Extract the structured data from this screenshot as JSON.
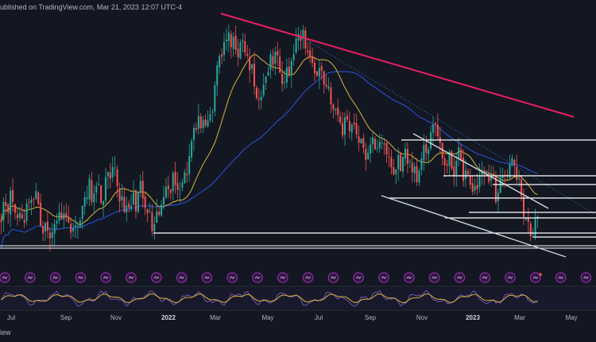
{
  "header": {
    "text": "ublished on TradingView.com, Mar 21, 2023 12:07 UTC-4"
  },
  "footer": {
    "label": "iew"
  },
  "colors": {
    "background": "#131722",
    "candle_up": "#26a69a",
    "candle_down": "#ef5350",
    "sma_fast": "#c7a83a",
    "sma_slow": "#2a4fd1",
    "downtrend": "#e91e63",
    "levels": "#ffffff",
    "channel": "#cfd8dc",
    "rsi": "#c7a83a",
    "rsi_signal": "#7e57c2",
    "event_icon": "#9c27b0"
  },
  "chart_data": {
    "type": "candlestick",
    "x_tick_labels": [
      {
        "label": "Jul",
        "bold": false
      },
      {
        "label": "Sep",
        "bold": false
      },
      {
        "label": "Nov",
        "bold": false
      },
      {
        "label": "2022",
        "bold": true
      },
      {
        "label": "Mar",
        "bold": false
      },
      {
        "label": "May",
        "bold": false
      },
      {
        "label": "Jul",
        "bold": false
      },
      {
        "label": "Sep",
        "bold": false
      },
      {
        "label": "Nov",
        "bold": false
      },
      {
        "label": "2023",
        "bold": true
      },
      {
        "label": "Mar",
        "bold": false
      },
      {
        "label": "May",
        "bold": false
      }
    ],
    "price_path": [
      {
        "period": "Jun 2021",
        "close": 0.53
      },
      {
        "period": "Jul 2021",
        "close": 0.55
      },
      {
        "period": "Aug 2021",
        "close": 0.5
      },
      {
        "period": "Sep 2021",
        "close": 0.52
      },
      {
        "period": "Oct 2021",
        "close": 0.6
      },
      {
        "period": "Nov 2021",
        "close": 0.56
      },
      {
        "period": "Dec 2021",
        "close": 0.52
      },
      {
        "period": "Jan 2022",
        "close": 0.62
      },
      {
        "period": "Feb 2022",
        "close": 0.75
      },
      {
        "period": "Mar 2022",
        "close": 0.95
      },
      {
        "period": "Apr 2022",
        "close": 0.83
      },
      {
        "period": "May 2022",
        "close": 0.88
      },
      {
        "period": "Jun 2022",
        "close": 0.92
      },
      {
        "period": "Jul 2022",
        "close": 0.78
      },
      {
        "period": "Aug 2022",
        "close": 0.7
      },
      {
        "period": "Sep 2022",
        "close": 0.67
      },
      {
        "period": "Oct 2022",
        "close": 0.63
      },
      {
        "period": "Nov 2022",
        "close": 0.7
      },
      {
        "period": "Dec 2022",
        "close": 0.62
      },
      {
        "period": "Jan 2023",
        "close": 0.6
      },
      {
        "period": "Feb 2023",
        "close": 0.62
      },
      {
        "period": "Mar 2023",
        "close": 0.48
      }
    ],
    "indicators": [
      "50 SMA",
      "200 SMA",
      "RSI"
    ],
    "drawings": [
      "descending trendline",
      "horizontal support/resistance levels",
      "descending channel"
    ],
    "grid": false,
    "legend": "none"
  }
}
